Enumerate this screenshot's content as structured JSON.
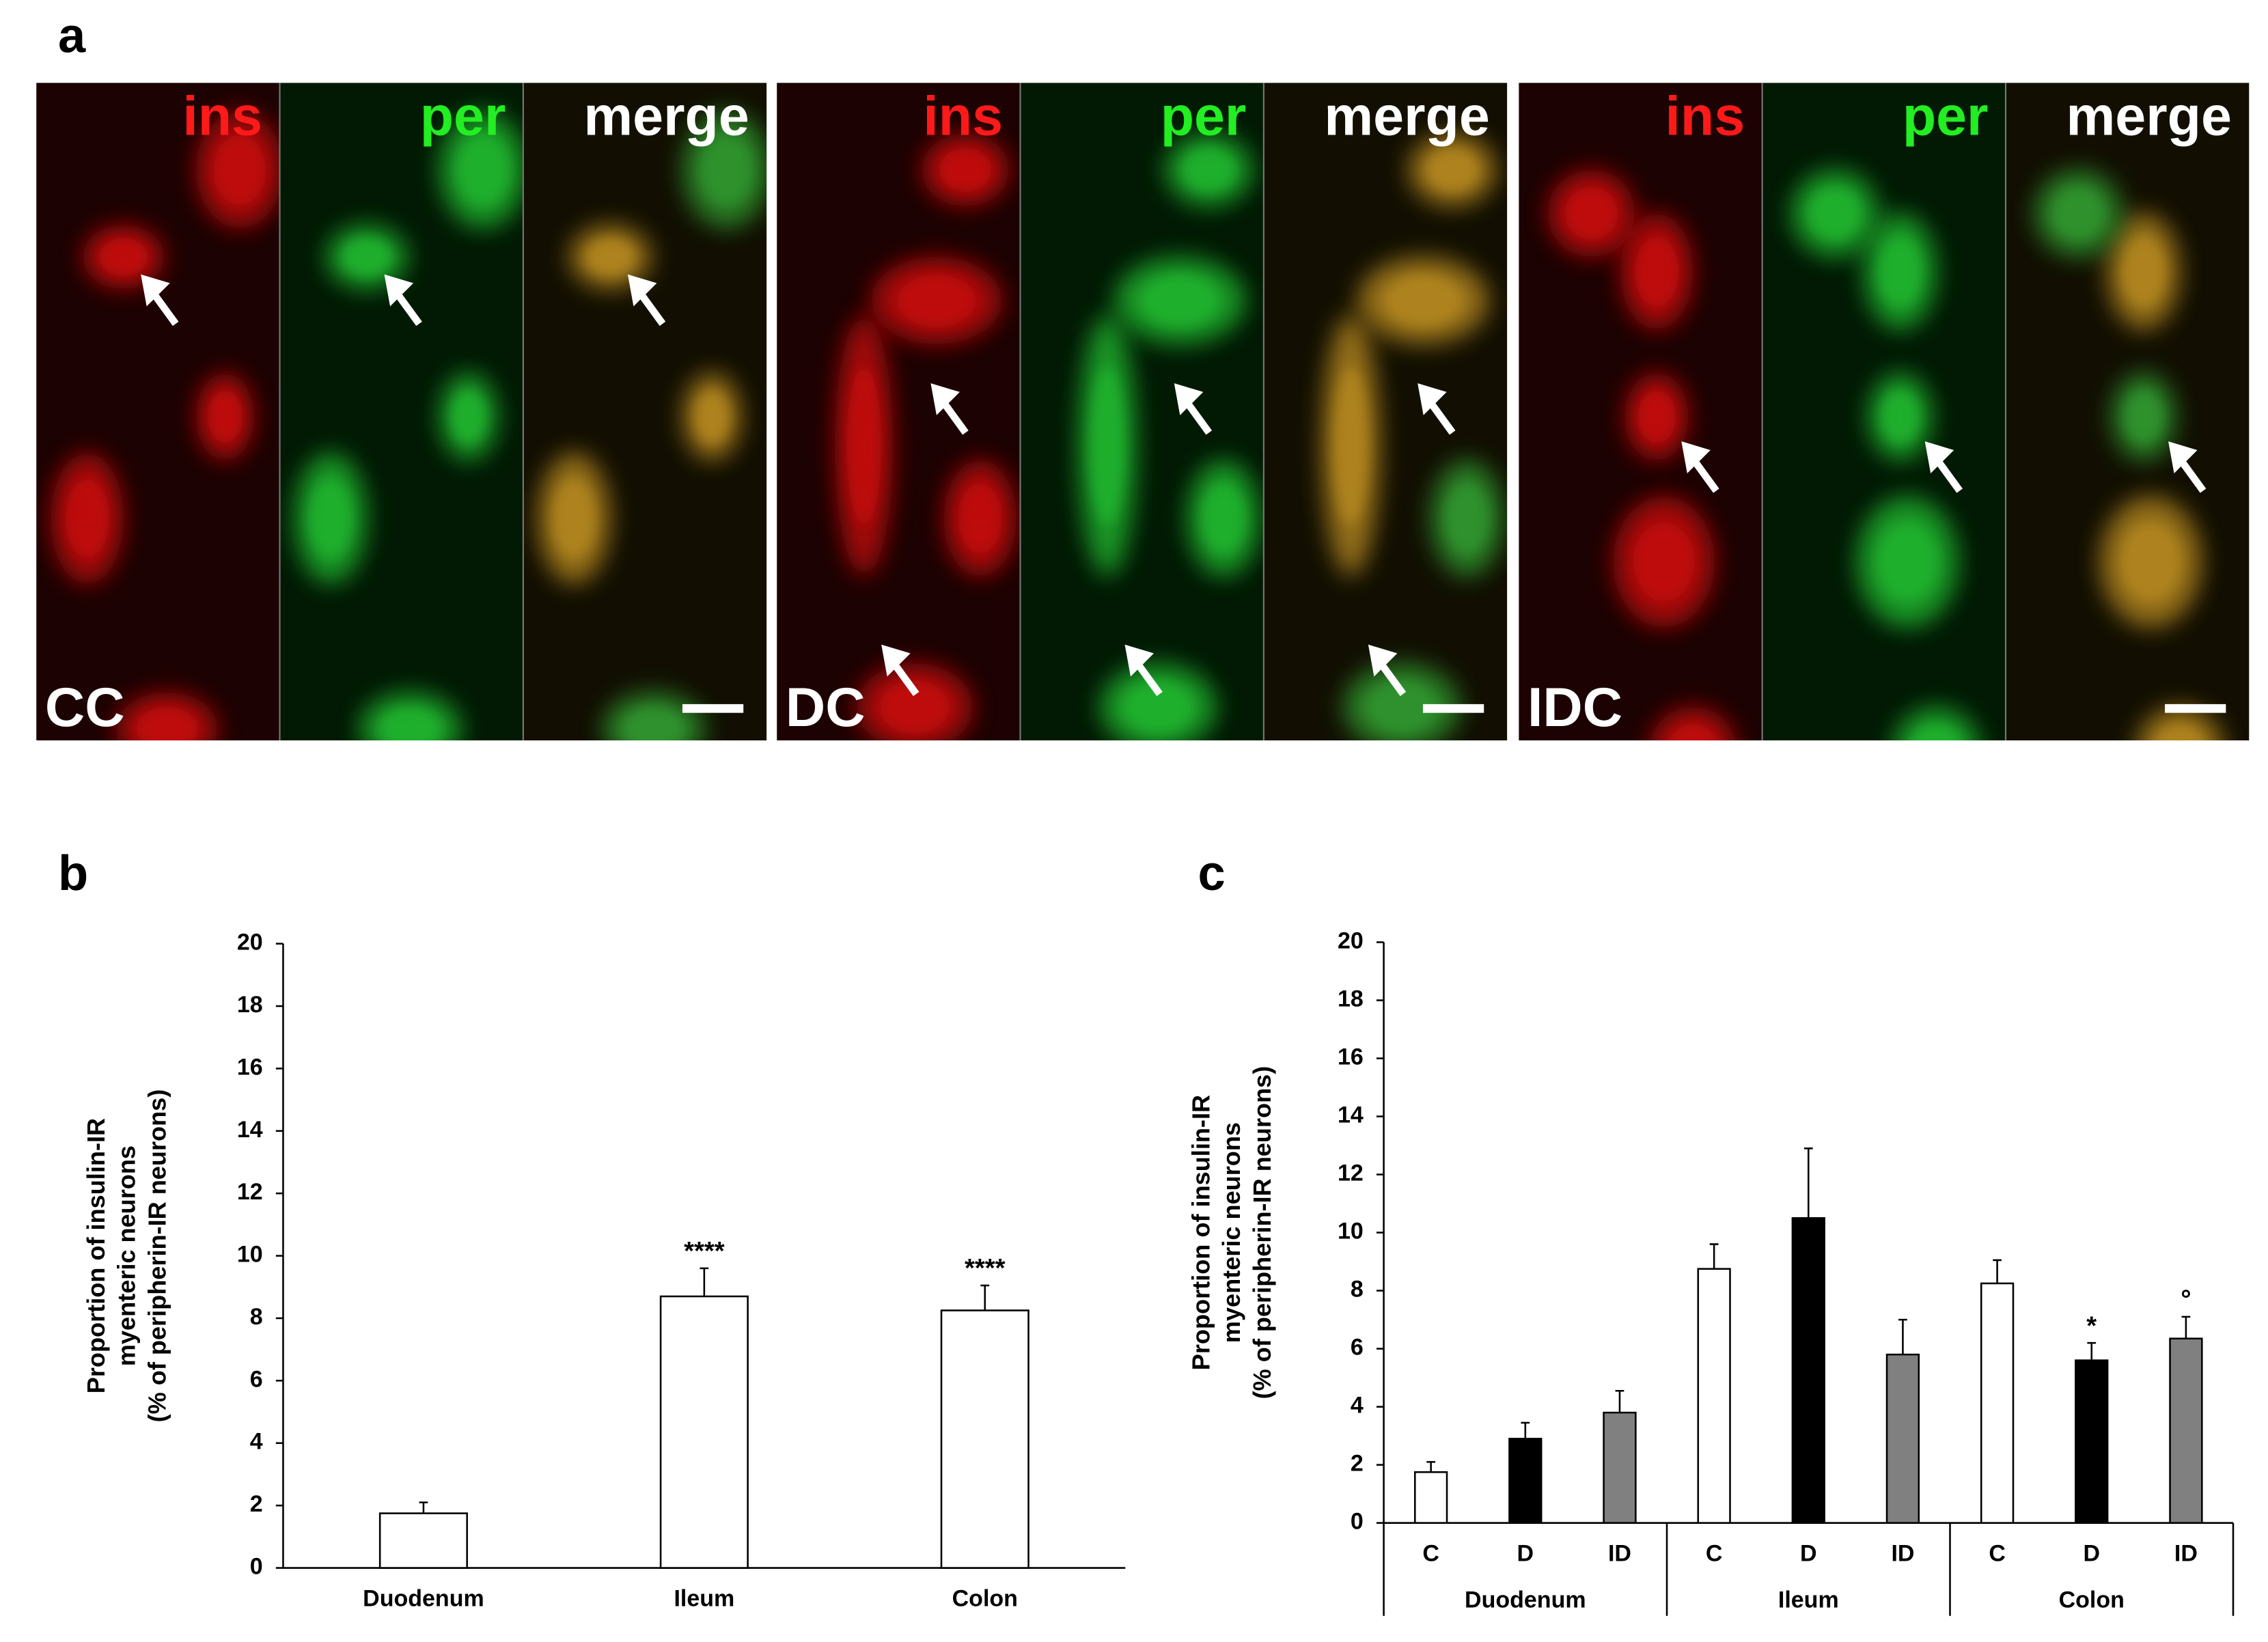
{
  "panel_labels": [
    "a",
    "b",
    "c"
  ],
  "images": [
    {
      "label": "CC",
      "channels": [
        "ins",
        "per",
        "merge"
      ]
    },
    {
      "label": "DC",
      "channels": [
        "ins",
        "per",
        "merge"
      ]
    },
    {
      "label": "IDC",
      "channels": [
        "ins",
        "per",
        "merge"
      ]
    }
  ],
  "chart_data": [
    {
      "type": "bar",
      "y_label": [
        "Proportion of insulin-IR",
        "myenteric neurons",
        "(% of peripherin-IR neurons)"
      ],
      "categories": [
        "Duodenum",
        "Ileum",
        "Colon"
      ],
      "values": [
        1.75,
        8.7,
        8.25
      ],
      "errors": [
        0.35,
        0.9,
        0.8
      ],
      "value_annotations": [
        null,
        "****",
        "****"
      ],
      "color": "#ffffff",
      "ylim": [
        0,
        20
      ],
      "yticks": [
        0,
        2,
        4,
        6,
        8,
        10,
        12,
        14,
        16,
        18,
        20
      ]
    },
    {
      "type": "grouped_bar",
      "y_label": [
        "Proportion of insulin-IR",
        "myenteric neurons",
        "(% of peripherin-IR neurons)"
      ],
      "groups": [
        "Duodenum",
        "Ileum",
        "Colon"
      ],
      "series": [
        {
          "name": "C",
          "color": "#ffffff",
          "values": [
            1.75,
            8.75,
            8.25
          ],
          "errors": [
            0.35,
            0.85,
            0.8
          ],
          "value_annotations": [
            null,
            null,
            null
          ]
        },
        {
          "name": "D",
          "color": "#000000",
          "values": [
            2.9,
            10.5,
            5.6
          ],
          "errors": [
            0.55,
            2.4,
            0.6
          ],
          "value_annotations": [
            null,
            null,
            "*"
          ]
        },
        {
          "name": "ID",
          "color": "#808080",
          "values": [
            3.8,
            5.8,
            6.35
          ],
          "errors": [
            0.75,
            1.2,
            0.75
          ],
          "value_annotations": [
            null,
            null,
            "°"
          ]
        }
      ],
      "ylim": [
        0,
        20
      ],
      "yticks": [
        0,
        2,
        4,
        6,
        8,
        10,
        12,
        14,
        16,
        18,
        20
      ]
    }
  ]
}
